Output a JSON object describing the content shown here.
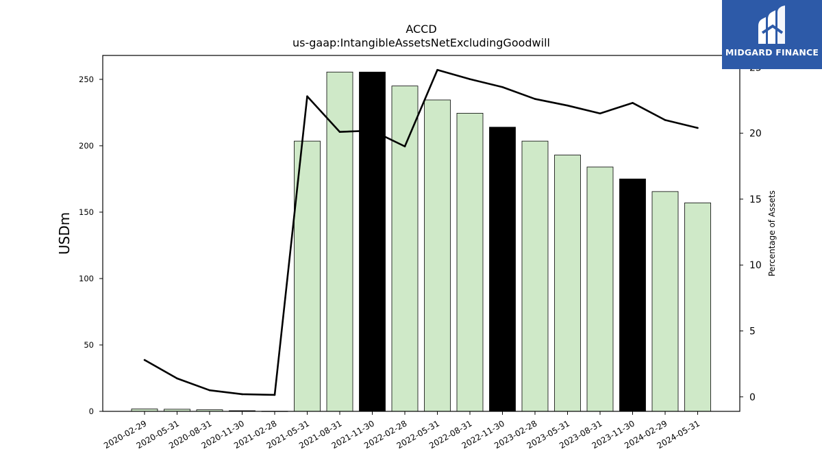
{
  "brand": {
    "name": "MIDGARD FINANCE",
    "logo_icon": "midgard-logo-icon",
    "color": "#2d5aa8"
  },
  "chart_data": {
    "type": "bar",
    "title": "ACCD",
    "subtitle": "us-gaap:IntangibleAssetsNetExcludingGoodwill",
    "ylabel": "USDm",
    "y2label": "Percentage of Assets",
    "ylim": [
      0,
      268
    ],
    "y2lim": [
      -1.1,
      25.9
    ],
    "yticks": [
      0,
      50,
      100,
      150,
      200,
      250
    ],
    "y2ticks": [
      0,
      5,
      10,
      15,
      20,
      25
    ],
    "grid": false,
    "categories": [
      "2020-02-29",
      "2020-05-31",
      "2020-08-31",
      "2020-11-30",
      "2021-02-28",
      "2021-05-31",
      "2021-08-31",
      "2021-11-30",
      "2022-02-28",
      "2022-05-31",
      "2022-08-31",
      "2022-11-30",
      "2023-02-28",
      "2023-05-31",
      "2023-08-31",
      "2023-11-30",
      "2024-02-29",
      "2024-05-31"
    ],
    "series": [
      {
        "kind": "bar",
        "values": [
          1.8,
          1.6,
          1.2,
          0.5,
          0.1,
          203.5,
          255.5,
          255.5,
          245,
          234.5,
          224.5,
          214,
          203.5,
          193,
          184,
          175,
          165.5,
          157
        ],
        "highlight": [
          false,
          false,
          false,
          true,
          false,
          false,
          false,
          true,
          false,
          false,
          false,
          true,
          false,
          false,
          false,
          true,
          false,
          false
        ],
        "color": "#cfe9c8",
        "highlight_color": "#000000",
        "edge_color": "#000000"
      },
      {
        "kind": "line",
        "axis": "right",
        "values": [
          2.8,
          1.4,
          0.5,
          0.2,
          0.15,
          22.8,
          20.1,
          20.2,
          19.0,
          24.8,
          24.1,
          23.5,
          22.6,
          22.1,
          21.5,
          22.3,
          21.0,
          20.4
        ],
        "color": "#000000"
      }
    ]
  }
}
